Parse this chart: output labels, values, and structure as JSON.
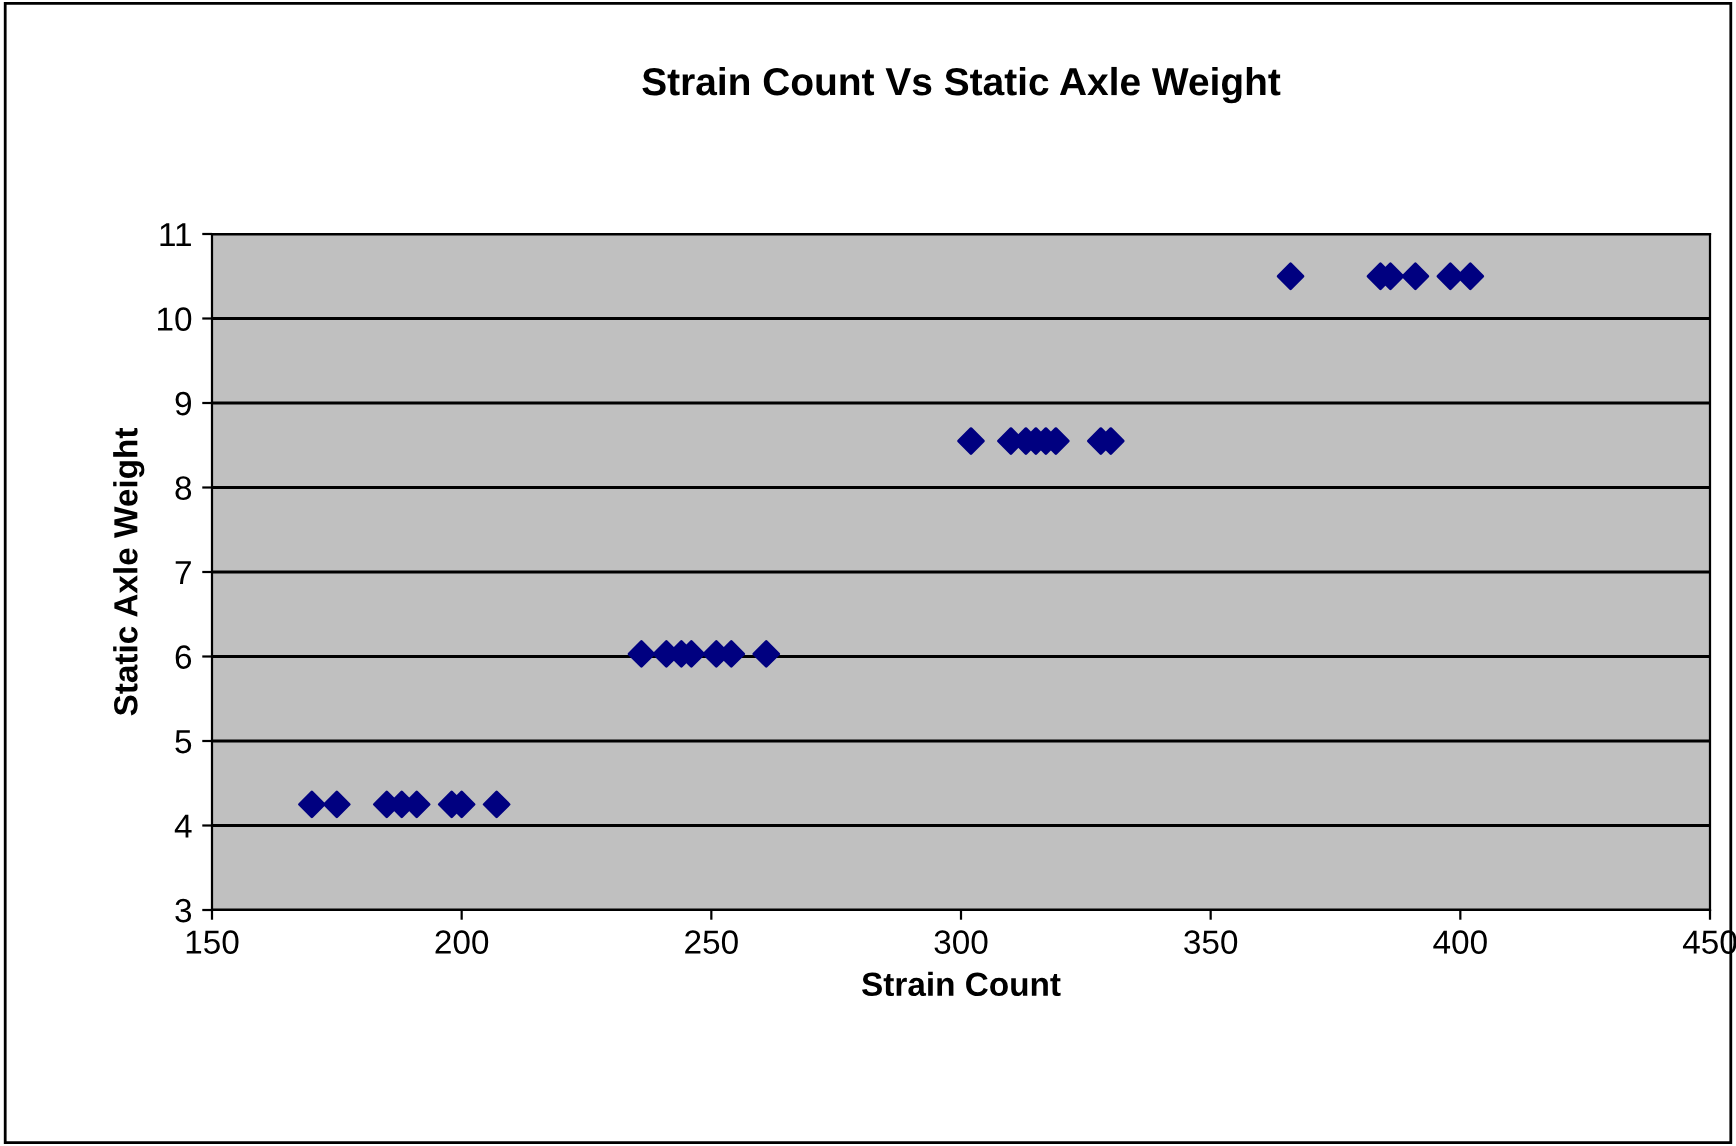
{
  "chart_data": {
    "type": "scatter",
    "title": "Strain Count Vs Static Axle Weight",
    "xlabel": "Strain Count",
    "ylabel": "Static Axle Weight",
    "series": [
      {
        "color": "#000080",
        "x": [
          170,
          175,
          185,
          188,
          191,
          198,
          200,
          207,
          236,
          241,
          244,
          246,
          251,
          254,
          261,
          302,
          310,
          313,
          315,
          317,
          319,
          328,
          330,
          366,
          384,
          386,
          391,
          398,
          402
        ],
        "values": [
          4.25,
          4.25,
          4.25,
          4.25,
          4.25,
          4.25,
          4.25,
          4.25,
          6.03,
          6.03,
          6.03,
          6.03,
          6.03,
          6.03,
          6.03,
          8.55,
          8.55,
          8.55,
          8.55,
          8.55,
          8.55,
          8.55,
          8.55,
          10.5,
          10.5,
          10.5,
          10.5,
          10.5,
          10.5
        ]
      }
    ],
    "xlim": [
      150,
      450
    ],
    "xticks": [
      150,
      200,
      250,
      300,
      350,
      400,
      450
    ],
    "ylim": [
      3,
      11
    ],
    "yticks": [
      3,
      4,
      5,
      6,
      7,
      8,
      9,
      10,
      11
    ],
    "grid": "y",
    "marker": "diamond",
    "legend": false
  }
}
